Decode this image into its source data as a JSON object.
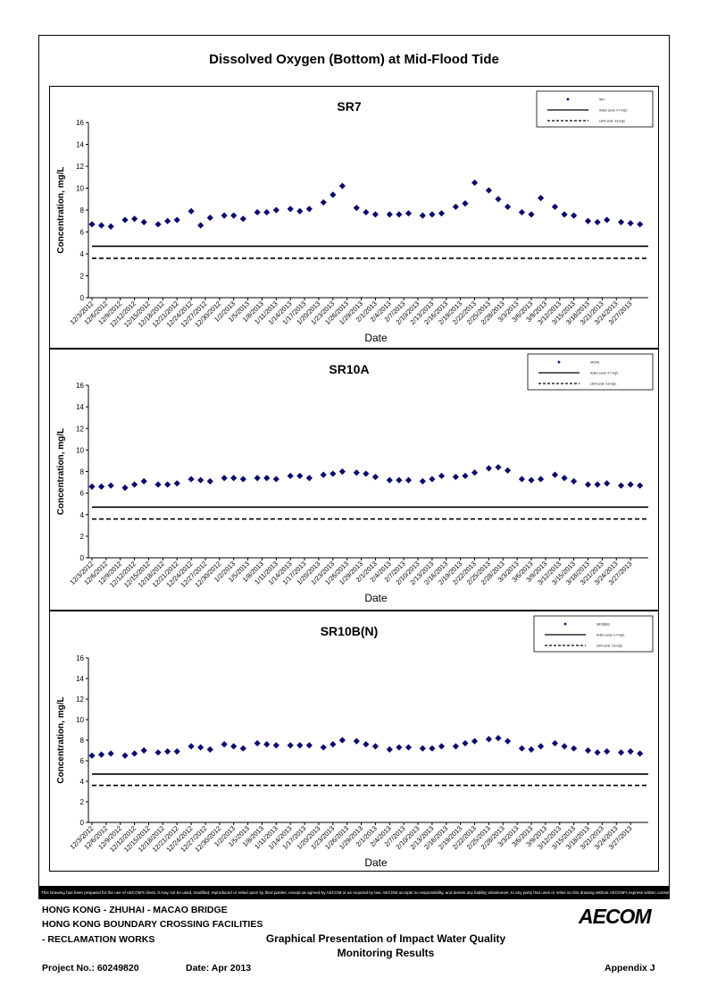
{
  "header": {
    "title": "Dissolved Oxygen (Bottom) at Mid-Flood Tide"
  },
  "chart_data": [
    {
      "type": "scatter",
      "title": "SR7",
      "xlabel": "Date",
      "ylabel": "Concentration, mg/L",
      "ylim": [
        0,
        16
      ],
      "yticks": [
        0,
        2,
        4,
        6,
        8,
        10,
        12,
        14,
        16
      ],
      "xtick_labels": [
        "12/3/2012",
        "12/6/2012",
        "12/9/2012",
        "12/12/2012",
        "12/15/2012",
        "12/18/2012",
        "12/21/2012",
        "12/24/2012",
        "12/27/2012",
        "12/30/2012",
        "1/2/2013",
        "1/5/2013",
        "1/8/2013",
        "1/11/2013",
        "1/14/2013",
        "1/17/2013",
        "1/20/2013",
        "1/23/2013",
        "1/26/2013",
        "1/29/2013",
        "2/1/2013",
        "2/4/2013",
        "2/7/2013",
        "2/10/2013",
        "2/13/2013",
        "2/16/2013",
        "2/19/2013",
        "2/22/2013",
        "2/25/2013",
        "2/28/2013",
        "3/3/2013",
        "3/6/2013",
        "3/9/2013",
        "3/12/2013",
        "3/15/2013",
        "3/18/2013",
        "3/21/2013",
        "3/24/2013",
        "3/27/2013"
      ],
      "legend_position": "top-right",
      "series": [
        {
          "name": "SR7",
          "marker": "diamond",
          "color": "#0a0a6e",
          "x": [
            "12/3/2012",
            "12/5/2012",
            "12/7/2012",
            "12/10/2012",
            "12/12/2012",
            "12/14/2012",
            "12/17/2012",
            "12/19/2012",
            "12/21/2012",
            "12/24/2012",
            "12/26/2012",
            "12/28/2012",
            "12/31/2012",
            "1/2/2013",
            "1/4/2013",
            "1/7/2013",
            "1/9/2013",
            "1/11/2013",
            "1/14/2013",
            "1/16/2013",
            "1/18/2013",
            "1/21/2013",
            "1/23/2013",
            "1/25/2013",
            "1/28/2013",
            "1/30/2013",
            "2/1/2013",
            "2/4/2013",
            "2/6/2013",
            "2/8/2013",
            "2/11/2013",
            "2/13/2013",
            "2/15/2013",
            "2/18/2013",
            "2/20/2013",
            "2/22/2013",
            "2/25/2013",
            "2/27/2013",
            "3/1/2013",
            "3/4/2013",
            "3/6/2013",
            "3/8/2013",
            "3/11/2013",
            "3/13/2013",
            "3/15/2013",
            "3/18/2013",
            "3/20/2013",
            "3/22/2013",
            "3/25/2013",
            "3/27/2013",
            "3/29/2013"
          ],
          "y": [
            6.7,
            6.6,
            6.5,
            7.1,
            7.2,
            6.9,
            6.7,
            7.0,
            7.1,
            7.9,
            6.6,
            7.3,
            7.5,
            7.5,
            7.2,
            7.8,
            7.8,
            8.0,
            8.1,
            7.9,
            8.1,
            8.7,
            9.4,
            10.2,
            8.2,
            7.8,
            7.6,
            7.6,
            7.6,
            7.7,
            7.5,
            7.6,
            7.7,
            8.3,
            8.6,
            10.5,
            9.8,
            9.0,
            8.3,
            7.8,
            7.6,
            9.1,
            8.3,
            7.6,
            7.5,
            7.0,
            6.9,
            7.1,
            6.9,
            6.8,
            6.7
          ]
        },
        {
          "name": "Action Level: 4.7 mg/L",
          "type": "line",
          "style": "solid",
          "y": 4.7
        },
        {
          "name": "Limit Level: 3.6 mg/L",
          "type": "line",
          "style": "dashed",
          "y": 3.6
        }
      ]
    },
    {
      "type": "scatter",
      "title": "SR10A",
      "xlabel": "Date",
      "ylabel": "Concentration, mg/L",
      "ylim": [
        0,
        16
      ],
      "yticks": [
        0,
        2,
        4,
        6,
        8,
        10,
        12,
        14,
        16
      ],
      "xtick_labels": [
        "12/3/2012",
        "12/6/2012",
        "12/9/2012",
        "12/12/2012",
        "12/15/2012",
        "12/18/2012",
        "12/21/2012",
        "12/24/2012",
        "12/27/2012",
        "12/30/2012",
        "1/2/2013",
        "1/5/2013",
        "1/8/2013",
        "1/11/2013",
        "1/14/2013",
        "1/17/2013",
        "1/20/2013",
        "1/23/2013",
        "1/26/2013",
        "1/29/2013",
        "2/1/2013",
        "2/4/2013",
        "2/7/2013",
        "2/10/2013",
        "2/13/2013",
        "2/16/2013",
        "2/19/2013",
        "2/22/2013",
        "2/25/2013",
        "2/28/2013",
        "3/3/2013",
        "3/6/2013",
        "3/9/2013",
        "3/12/2013",
        "3/15/2013",
        "3/18/2013",
        "3/21/2013",
        "3/24/2013",
        "3/27/2013"
      ],
      "legend_position": "top-right",
      "series": [
        {
          "name": "SR10A",
          "marker": "diamond",
          "color": "#0a0a6e",
          "x": [
            "12/3/2012",
            "12/5/2012",
            "12/7/2012",
            "12/10/2012",
            "12/12/2012",
            "12/14/2012",
            "12/17/2012",
            "12/19/2012",
            "12/21/2012",
            "12/24/2012",
            "12/26/2012",
            "12/28/2012",
            "12/31/2012",
            "1/2/2013",
            "1/4/2013",
            "1/7/2013",
            "1/9/2013",
            "1/11/2013",
            "1/14/2013",
            "1/16/2013",
            "1/18/2013",
            "1/21/2013",
            "1/23/2013",
            "1/25/2013",
            "1/28/2013",
            "1/30/2013",
            "2/1/2013",
            "2/4/2013",
            "2/6/2013",
            "2/8/2013",
            "2/11/2013",
            "2/13/2013",
            "2/15/2013",
            "2/18/2013",
            "2/20/2013",
            "2/22/2013",
            "2/25/2013",
            "2/27/2013",
            "3/1/2013",
            "3/4/2013",
            "3/6/2013",
            "3/8/2013",
            "3/11/2013",
            "3/13/2013",
            "3/15/2013",
            "3/18/2013",
            "3/20/2013",
            "3/22/2013",
            "3/25/2013",
            "3/27/2013",
            "3/29/2013"
          ],
          "y": [
            6.6,
            6.6,
            6.7,
            6.5,
            6.8,
            7.1,
            6.8,
            6.8,
            6.9,
            7.3,
            7.2,
            7.1,
            7.4,
            7.4,
            7.3,
            7.4,
            7.4,
            7.3,
            7.6,
            7.6,
            7.4,
            7.7,
            7.8,
            8.0,
            7.9,
            7.8,
            7.5,
            7.2,
            7.2,
            7.2,
            7.1,
            7.3,
            7.6,
            7.5,
            7.6,
            7.9,
            8.3,
            8.4,
            8.1,
            7.3,
            7.2,
            7.3,
            7.7,
            7.4,
            7.1,
            6.8,
            6.8,
            6.9,
            6.7,
            6.8,
            6.7
          ]
        },
        {
          "name": "Action Level: 4.7 mg/L",
          "type": "line",
          "style": "solid",
          "y": 4.7
        },
        {
          "name": "Limit Level: 3.6 mg/L",
          "type": "line",
          "style": "dashed",
          "y": 3.6
        }
      ]
    },
    {
      "type": "scatter",
      "title": "SR10B(N)",
      "xlabel": "Date",
      "ylabel": "Concentration, mg/L",
      "ylim": [
        0,
        16
      ],
      "yticks": [
        0,
        2,
        4,
        6,
        8,
        10,
        12,
        14,
        16
      ],
      "xtick_labels": [
        "12/3/2012",
        "12/6/2012",
        "12/9/2012",
        "12/12/2012",
        "12/15/2012",
        "12/18/2012",
        "12/21/2012",
        "12/24/2012",
        "12/27/2012",
        "12/30/2012",
        "1/2/2013",
        "1/5/2013",
        "1/8/2013",
        "1/11/2013",
        "1/14/2013",
        "1/17/2013",
        "1/20/2013",
        "1/23/2013",
        "1/26/2013",
        "1/29/2013",
        "2/1/2013",
        "2/4/2013",
        "2/7/2013",
        "2/10/2013",
        "2/13/2013",
        "2/16/2013",
        "2/19/2013",
        "2/22/2013",
        "2/25/2013",
        "2/28/2013",
        "3/3/2013",
        "3/6/2013",
        "3/9/2013",
        "3/12/2013",
        "3/15/2013",
        "3/18/2013",
        "3/21/2013",
        "3/24/2013",
        "3/27/2013"
      ],
      "legend_position": "top-right",
      "series": [
        {
          "name": "SR10B(N)",
          "marker": "diamond",
          "color": "#0a0a6e",
          "x": [
            "12/3/2012",
            "12/5/2012",
            "12/7/2012",
            "12/10/2012",
            "12/12/2012",
            "12/14/2012",
            "12/17/2012",
            "12/19/2012",
            "12/21/2012",
            "12/24/2012",
            "12/26/2012",
            "12/28/2012",
            "12/31/2012",
            "1/2/2013",
            "1/4/2013",
            "1/7/2013",
            "1/9/2013",
            "1/11/2013",
            "1/14/2013",
            "1/16/2013",
            "1/18/2013",
            "1/21/2013",
            "1/23/2013",
            "1/25/2013",
            "1/28/2013",
            "1/30/2013",
            "2/1/2013",
            "2/4/2013",
            "2/6/2013",
            "2/8/2013",
            "2/11/2013",
            "2/13/2013",
            "2/15/2013",
            "2/18/2013",
            "2/20/2013",
            "2/22/2013",
            "2/25/2013",
            "2/27/2013",
            "3/1/2013",
            "3/4/2013",
            "3/6/2013",
            "3/8/2013",
            "3/11/2013",
            "3/13/2013",
            "3/15/2013",
            "3/18/2013",
            "3/20/2013",
            "3/22/2013",
            "3/25/2013",
            "3/27/2013",
            "3/29/2013"
          ],
          "y": [
            6.5,
            6.6,
            6.7,
            6.5,
            6.7,
            7.0,
            6.8,
            6.9,
            6.9,
            7.4,
            7.3,
            7.1,
            7.6,
            7.4,
            7.2,
            7.7,
            7.6,
            7.5,
            7.5,
            7.5,
            7.5,
            7.3,
            7.6,
            8.0,
            7.9,
            7.6,
            7.4,
            7.1,
            7.3,
            7.3,
            7.2,
            7.2,
            7.4,
            7.4,
            7.7,
            7.9,
            8.1,
            8.2,
            7.9,
            7.2,
            7.1,
            7.4,
            7.7,
            7.4,
            7.2,
            7.0,
            6.8,
            6.9,
            6.8,
            6.9,
            6.7
          ]
        },
        {
          "name": "Action Level: 4.7 mg/L",
          "type": "line",
          "style": "solid",
          "y": 4.7
        },
        {
          "name": "Limit Level: 3.6 mg/L",
          "type": "line",
          "style": "dashed",
          "y": 3.6
        }
      ]
    }
  ],
  "footer": {
    "disclaimer": "This Drawing has been prepared for the use of AECOM's client. It may not be used, modified, reproduced or relied upon by third parties, except as agreed by AECOM or as required by law. AECOM accepts no responsibility, and denies any liability whatsoever, to any party that uses or relies on this drawing without AECOM's express written consent.",
    "line1": "HONG KONG - ZHUHAI - MACAO BRIDGE",
    "line2": "HONG KONG BOUNDARY CROSSING FACILITIES",
    "line3": "- RECLAMATION WORKS",
    "presentation_line1": "Graphical Presentation of Impact Water Quality",
    "presentation_line2": "Monitoring Results",
    "project_no": "Project No.: 60249820",
    "date": "Date: Apr 2013",
    "appendix": "Appendix J",
    "logo": "AECOM"
  }
}
